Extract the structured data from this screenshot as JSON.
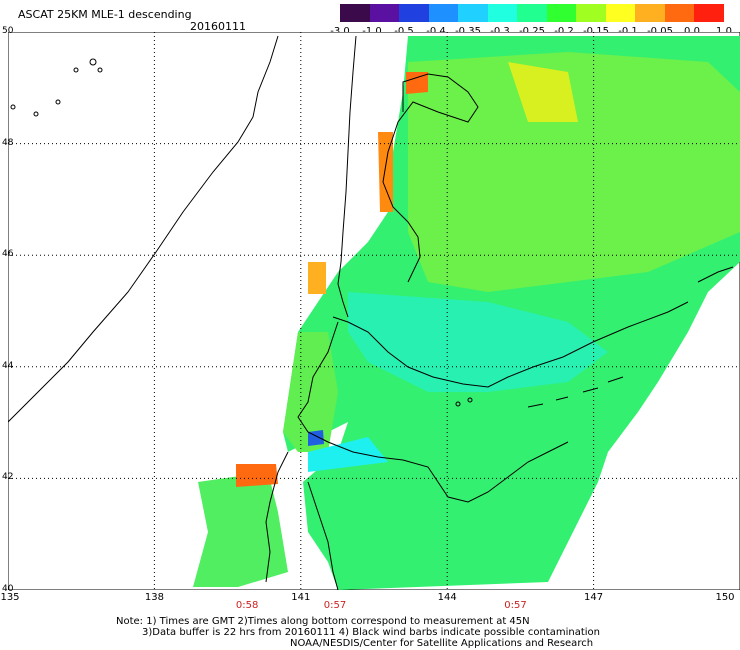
{
  "header": {
    "title": "ASCAT 25KM MLE-1 descending",
    "date": "20160111"
  },
  "colorbar": {
    "ticks": [
      "-3.0",
      "-1.0",
      "-0.5",
      "-0.4",
      "-0.35",
      "-0.3",
      "-0.25",
      "-0.2",
      "-0.15",
      "-0.1",
      "-0.05",
      "0.0",
      "1.0"
    ],
    "colors": [
      "#3a0a4a",
      "#5a10a0",
      "#2040e0",
      "#1e90ff",
      "#20d0ff",
      "#20ffe0",
      "#20ff90",
      "#30ff30",
      "#a0ff20",
      "#ffff20",
      "#ffb020",
      "#ff6a10",
      "#ff2010"
    ]
  },
  "map": {
    "lat_labels": [
      "50",
      "48",
      "46",
      "44",
      "42",
      "40"
    ],
    "lon_labels": [
      "135",
      "138",
      "141",
      "144",
      "147",
      "150"
    ],
    "time_labels": [
      {
        "lon": "139.9",
        "text": "0:58"
      },
      {
        "lon": "141.7",
        "text": "0:57"
      },
      {
        "lon": "145.4",
        "text": "0:57"
      }
    ]
  },
  "notes": {
    "line1": "Note: 1) Times are GMT 2)Times along bottom correspond to measurement at 45N",
    "line2": "3)Data buffer is 22 hrs from 20160111 4) Black wind barbs indicate possible contamination",
    "line3": "NOAA/NESDIS/Center for Satellite Applications and Research"
  }
}
